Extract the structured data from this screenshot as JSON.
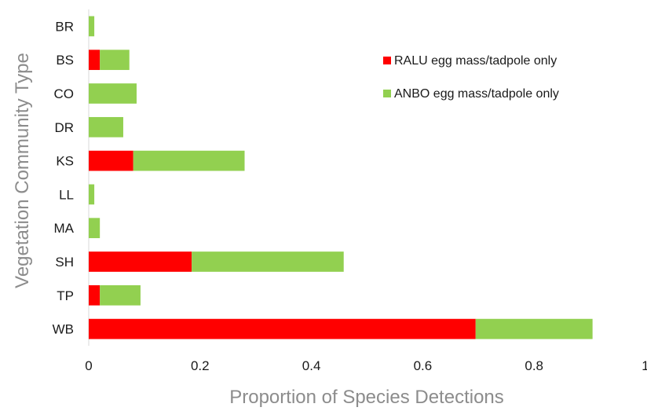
{
  "chart_data": {
    "type": "bar",
    "orientation": "horizontal",
    "stacked": true,
    "categories": [
      "BR",
      "BS",
      "CO",
      "DR",
      "KS",
      "LL",
      "MA",
      "SH",
      "TP",
      "WB"
    ],
    "series": [
      {
        "name": "RALU egg mass/tadpole only",
        "color": "#ff0000",
        "values": [
          0,
          0.02,
          0,
          0,
          0.08,
          0,
          0,
          0.185,
          0.02,
          0.695
        ]
      },
      {
        "name": "ANBO egg mass/tadpole only",
        "color": "#92d050",
        "values": [
          0.01,
          0.053,
          0.086,
          0.062,
          0.2,
          0.01,
          0.02,
          0.273,
          0.073,
          0.21
        ]
      }
    ],
    "xlabel": "Proportion of Species Detections",
    "ylabel": "Vegetation Community Type",
    "xlim": [
      0,
      1
    ],
    "xticks": [
      "0",
      "0.2",
      "0.4",
      "0.6",
      "0.8",
      "1"
    ],
    "grid": false,
    "legend_position": "top-right"
  }
}
